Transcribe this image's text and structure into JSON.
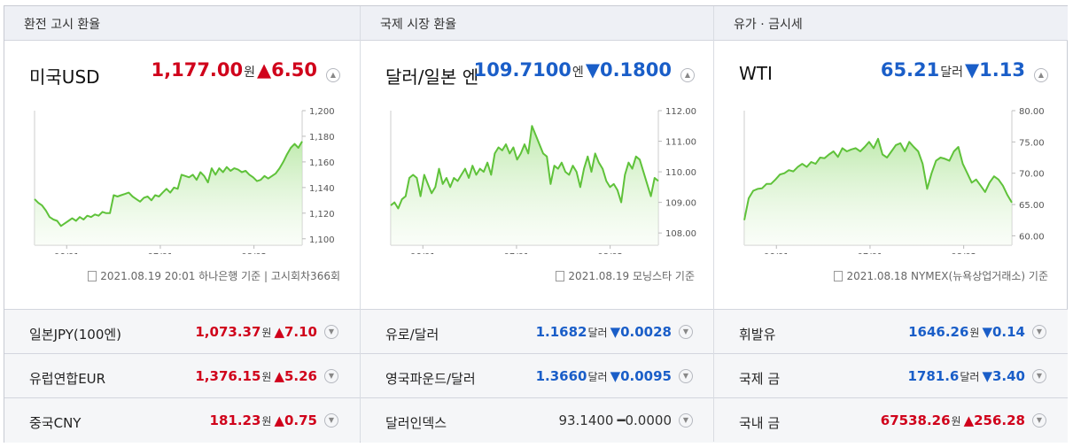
{
  "colors": {
    "up": "#d0021b",
    "down": "#1a5ec8",
    "line": "#5fc23a"
  },
  "panels": [
    {
      "header": "환전 고시 환율",
      "title": "미국USD",
      "value": "1,177.00",
      "unit": "원",
      "change": "▲6.50",
      "dir": "up",
      "source": "2021.08.19 20:01 하나은행 기준 | 고시회차366회",
      "chart_data": {
        "type": "area",
        "x_ticks": [
          "06/01",
          "07/01",
          "08/02"
        ],
        "y_ticks": [
          "1,200",
          "1,180",
          "1,160",
          "1,140",
          "1,120",
          "1,100"
        ],
        "ylim": [
          1095,
          1200
        ],
        "values": [
          1131,
          1128,
          1126,
          1122,
          1117,
          1115,
          1114,
          1110,
          1112,
          1114,
          1116,
          1114,
          1117,
          1115,
          1118,
          1117,
          1119,
          1118,
          1121,
          1120,
          1120,
          1134,
          1133,
          1134,
          1135,
          1136,
          1133,
          1131,
          1129,
          1132,
          1133,
          1130,
          1134,
          1133,
          1136,
          1139,
          1136,
          1140,
          1139,
          1150,
          1149,
          1148,
          1150,
          1146,
          1152,
          1149,
          1144,
          1155,
          1150,
          1155,
          1152,
          1156,
          1153,
          1155,
          1154,
          1152,
          1153,
          1150,
          1148,
          1145,
          1146,
          1149,
          1147,
          1149,
          1151,
          1155,
          1160,
          1166,
          1171,
          1174,
          1171,
          1176
        ]
      },
      "rows": [
        {
          "name": "일본JPY(100엔)",
          "value": "1,073.37",
          "unit": "원",
          "change": "▲7.10",
          "dir": "up"
        },
        {
          "name": "유럽연합EUR",
          "value": "1,376.15",
          "unit": "원",
          "change": "▲5.26",
          "dir": "up"
        },
        {
          "name": "중국CNY",
          "value": "181.23",
          "unit": "원",
          "change": "▲0.75",
          "dir": "up"
        }
      ]
    },
    {
      "header": "국제 시장 환율",
      "title": "달러/일본 엔",
      "value": "109.7100",
      "unit": "엔",
      "change": "▼0.1800",
      "dir": "down",
      "source": "2021.08.19 모닝스타 기준",
      "chart_data": {
        "type": "area",
        "x_ticks": [
          "06/01",
          "07/01",
          "08/02"
        ],
        "y_ticks": [
          "112.00",
          "111.00",
          "110.00",
          "109.00",
          "108.00"
        ],
        "ylim": [
          107.6,
          112.0
        ],
        "values": [
          108.9,
          109.0,
          108.8,
          109.1,
          109.2,
          109.8,
          109.9,
          109.8,
          109.2,
          109.9,
          109.6,
          109.3,
          109.5,
          110.1,
          109.6,
          109.8,
          109.5,
          109.8,
          109.7,
          109.9,
          110.1,
          109.8,
          110.2,
          109.9,
          110.1,
          110.0,
          110.3,
          109.9,
          110.6,
          110.8,
          110.7,
          110.9,
          110.6,
          110.8,
          110.4,
          110.6,
          110.9,
          110.6,
          111.5,
          111.2,
          110.9,
          110.6,
          110.5,
          109.6,
          110.2,
          110.1,
          110.3,
          110.0,
          109.9,
          110.2,
          110.0,
          109.5,
          110.1,
          110.5,
          110.0,
          110.6,
          110.3,
          110.1,
          109.7,
          109.5,
          109.6,
          109.4,
          109.0,
          109.9,
          110.3,
          110.1,
          110.5,
          110.4,
          110.0,
          109.6,
          109.2,
          109.8,
          109.7
        ]
      },
      "rows": [
        {
          "name": "유로/달러",
          "value": "1.1682",
          "unit": "달러",
          "change": "▼0.0028",
          "dir": "down"
        },
        {
          "name": "영국파운드/달러",
          "value": "1.3660",
          "unit": "달러",
          "change": "▼0.0095",
          "dir": "down"
        },
        {
          "name": "달러인덱스",
          "value": "93.1400",
          "unit": "",
          "change": "━0.0000",
          "dir": "flat"
        }
      ]
    },
    {
      "header": "유가 · 금시세",
      "title": "WTI",
      "value": "65.21",
      "unit": "달러",
      "change": "▼1.13",
      "dir": "down",
      "source": "2021.08.18 NYMEX(뉴욕상업거래소) 기준",
      "chart_data": {
        "type": "area",
        "x_ticks": [
          "06/01",
          "07/01",
          "08/02"
        ],
        "y_ticks": [
          "80.00",
          "75.00",
          "70.00",
          "65.00",
          "60.00"
        ],
        "ylim": [
          58.5,
          80.0
        ],
        "values": [
          62.5,
          66.0,
          67.2,
          67.5,
          67.6,
          68.3,
          68.3,
          69.0,
          69.8,
          70.0,
          70.5,
          70.3,
          71.0,
          71.5,
          71.0,
          71.8,
          71.5,
          72.5,
          72.4,
          73.0,
          73.5,
          72.6,
          74.0,
          73.5,
          73.8,
          74.0,
          73.5,
          74.2,
          75.0,
          74.0,
          75.5,
          73.0,
          72.5,
          73.5,
          74.5,
          74.8,
          73.5,
          75.0,
          74.2,
          73.5,
          71.5,
          67.5,
          70.0,
          72.0,
          72.5,
          72.3,
          72.0,
          73.5,
          74.2,
          71.5,
          70.0,
          68.5,
          69.0,
          68.0,
          67.0,
          68.5,
          69.5,
          69.0,
          68.0,
          66.5,
          65.3
        ]
      },
      "rows": [
        {
          "name": "휘발유",
          "value": "1646.26",
          "unit": "원",
          "change": "▼0.14",
          "dir": "down"
        },
        {
          "name": "국제 금",
          "value": "1781.6",
          "unit": "달러",
          "change": "▼3.40",
          "dir": "down"
        },
        {
          "name": "국내 금",
          "value": "67538.26",
          "unit": "원",
          "change": "▲256.28",
          "dir": "up"
        }
      ]
    }
  ]
}
